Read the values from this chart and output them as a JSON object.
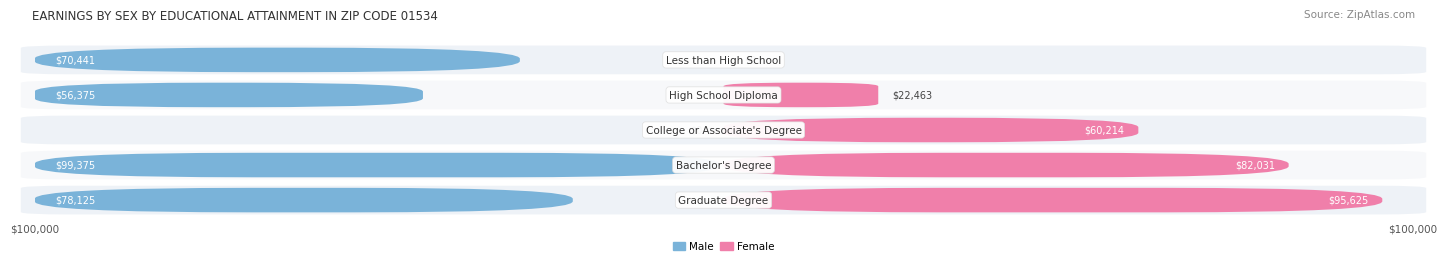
{
  "title": "EARNINGS BY SEX BY EDUCATIONAL ATTAINMENT IN ZIP CODE 01534",
  "source": "Source: ZipAtlas.com",
  "categories": [
    "Less than High School",
    "High School Diploma",
    "College or Associate's Degree",
    "Bachelor's Degree",
    "Graduate Degree"
  ],
  "male_values": [
    70441,
    56375,
    0,
    99375,
    78125
  ],
  "female_values": [
    0,
    22463,
    60214,
    82031,
    95625
  ],
  "male_color": "#7ab3d9",
  "female_color": "#f07faa",
  "max_value": 100000,
  "x_left_label": "$100,000",
  "x_right_label": "$100,000",
  "legend_male": "Male",
  "legend_female": "Female",
  "bar_height": 0.7,
  "row_bg_odd": "#eef2f7",
  "row_bg_even": "#f7f8fa",
  "title_fontsize": 8.5,
  "source_fontsize": 7.5,
  "label_fontsize": 7.0,
  "category_fontsize": 7.5,
  "axis_fontsize": 7.5,
  "background_color": "#ffffff",
  "zero_label_color": "#555555",
  "outside_label_color": "#444444",
  "inside_label_color": "#ffffff"
}
